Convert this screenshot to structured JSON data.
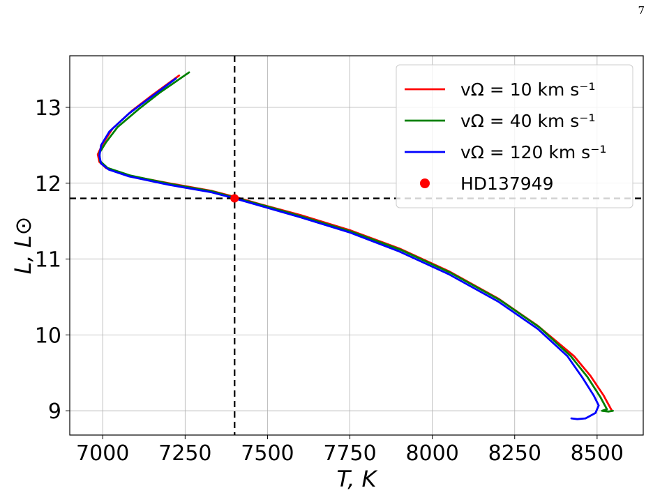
{
  "page": {
    "number": "7"
  },
  "chart_data": {
    "type": "line",
    "title": "",
    "xlabel": "T, K",
    "ylabel": "L, L⊙",
    "xlim": [
      6900,
      8640
    ],
    "ylim": [
      8.68,
      13.68
    ],
    "xticks": [
      7000,
      7250,
      7500,
      7750,
      8000,
      8250,
      8500
    ],
    "yticks": [
      9,
      10,
      11,
      12,
      13
    ],
    "grid": true,
    "legend_position": "top-right",
    "reference_lines": {
      "x": 7400,
      "y": 11.8,
      "style": "dashed",
      "color": "#000000"
    },
    "series": [
      {
        "name": "vΩ = 10 km s⁻¹",
        "color": "#ff0000",
        "points": [
          [
            7232,
            13.42
          ],
          [
            7150,
            13.16
          ],
          [
            7090,
            12.96
          ],
          [
            7030,
            12.72
          ],
          [
            7000,
            12.52
          ],
          [
            6985,
            12.38
          ],
          [
            6990,
            12.28
          ],
          [
            7010,
            12.2
          ],
          [
            7080,
            12.1
          ],
          [
            7200,
            12.0
          ],
          [
            7330,
            11.9
          ],
          [
            7400,
            11.82
          ],
          [
            7480,
            11.72
          ],
          [
            7600,
            11.58
          ],
          [
            7750,
            11.38
          ],
          [
            7900,
            11.14
          ],
          [
            8050,
            10.84
          ],
          [
            8200,
            10.48
          ],
          [
            8320,
            10.12
          ],
          [
            8430,
            9.72
          ],
          [
            8480,
            9.46
          ],
          [
            8520,
            9.2
          ],
          [
            8545,
            9.0
          ]
        ]
      },
      {
        "name": "vΩ = 40 km s⁻¹",
        "color": "#008000",
        "points": [
          [
            7262,
            13.46
          ],
          [
            7175,
            13.2
          ],
          [
            7110,
            12.98
          ],
          [
            7045,
            12.74
          ],
          [
            7010,
            12.54
          ],
          [
            6990,
            12.4
          ],
          [
            6992,
            12.29
          ],
          [
            7015,
            12.2
          ],
          [
            7085,
            12.1
          ],
          [
            7205,
            11.99
          ],
          [
            7335,
            11.89
          ],
          [
            7400,
            11.81
          ],
          [
            7485,
            11.71
          ],
          [
            7605,
            11.56
          ],
          [
            7755,
            11.36
          ],
          [
            7905,
            11.12
          ],
          [
            8055,
            10.82
          ],
          [
            8205,
            10.46
          ],
          [
            8325,
            10.1
          ],
          [
            8420,
            9.72
          ],
          [
            8470,
            9.45
          ],
          [
            8510,
            9.18
          ],
          [
            8530,
            9.02
          ],
          [
            8515,
            9.0
          ],
          [
            8535,
            8.99
          ],
          [
            8548,
            9.0
          ]
        ]
      },
      {
        "name": "vΩ = 120 km s⁻¹",
        "color": "#0000ff",
        "points": [
          [
            7222,
            13.38
          ],
          [
            7145,
            13.13
          ],
          [
            7080,
            12.92
          ],
          [
            7020,
            12.68
          ],
          [
            6995,
            12.5
          ],
          [
            6990,
            12.36
          ],
          [
            6995,
            12.26
          ],
          [
            7018,
            12.18
          ],
          [
            7080,
            12.09
          ],
          [
            7200,
            11.98
          ],
          [
            7330,
            11.88
          ],
          [
            7400,
            11.8
          ],
          [
            7480,
            11.7
          ],
          [
            7600,
            11.55
          ],
          [
            7750,
            11.35
          ],
          [
            7900,
            11.1
          ],
          [
            8050,
            10.8
          ],
          [
            8200,
            10.44
          ],
          [
            8320,
            10.08
          ],
          [
            8410,
            9.72
          ],
          [
            8455,
            9.44
          ],
          [
            8490,
            9.2
          ],
          [
            8505,
            9.07
          ],
          [
            8495,
            8.97
          ],
          [
            8465,
            8.9
          ],
          [
            8440,
            8.89
          ],
          [
            8422,
            8.9
          ]
        ]
      }
    ],
    "points": [
      {
        "name": "HD137949",
        "x": 7400,
        "y": 11.8,
        "color": "#ff0000"
      }
    ],
    "legend": [
      {
        "label": "vΩ = 10 km s⁻¹",
        "color": "#ff0000",
        "marker": "line"
      },
      {
        "label": "vΩ = 40 km s⁻¹",
        "color": "#008000",
        "marker": "line"
      },
      {
        "label": "vΩ = 120 km s⁻¹",
        "color": "#0000ff",
        "marker": "line"
      },
      {
        "label": "HD137949",
        "color": "#ff0000",
        "marker": "dot"
      }
    ]
  }
}
